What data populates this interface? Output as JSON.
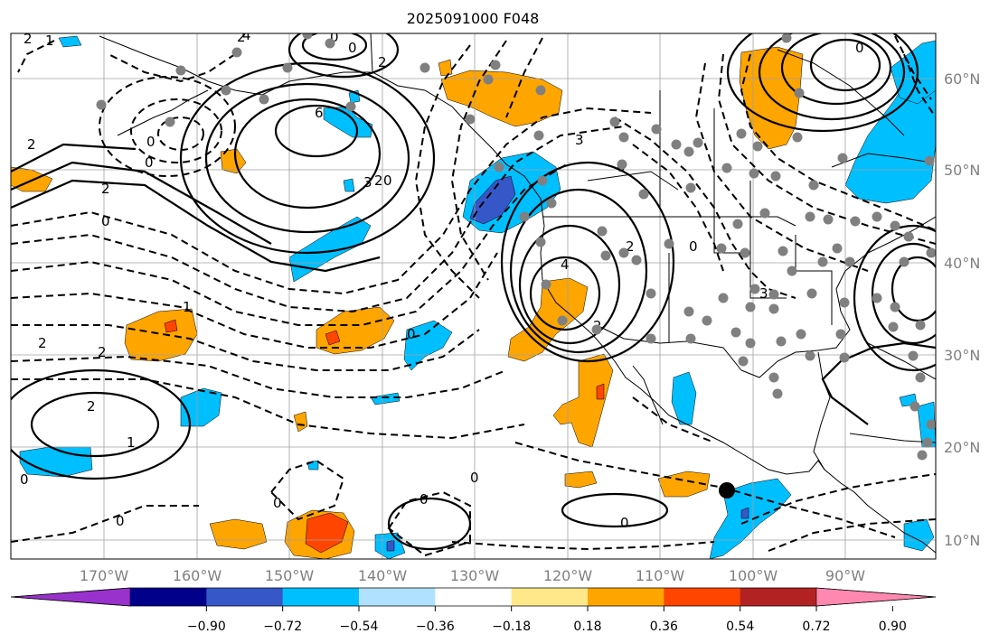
{
  "title": "2025091000 F048",
  "lon_labels": [
    "170°W",
    "160°W",
    "150°W",
    "140°W",
    "130°W",
    "120°W",
    "110°W",
    "100°W",
    "90°W"
  ],
  "lat_labels": [
    "60°N",
    "50°N",
    "40°N",
    "30°N",
    "20°N",
    "10°N"
  ],
  "colorbar": {
    "colors": [
      "#9932cc",
      "#00008b",
      "#3657c8",
      "#00bfff",
      "#b0e2ff",
      "#ffffff",
      "#ffe88a",
      "#ffa500",
      "#ff4500",
      "#b22222",
      "#ff88b0"
    ],
    "tick_labels": [
      "−0.90",
      "−0.72",
      "−0.54",
      "−0.36",
      "−0.18",
      "0.18",
      "0.36",
      "0.54",
      "0.72",
      "0.90"
    ]
  },
  "contour_labels": [
    "2",
    "4",
    "0",
    "0",
    "2",
    "1",
    "2",
    "2",
    "0",
    "0",
    "6",
    "3",
    "2",
    "0",
    "2",
    "1",
    "2",
    "2",
    "0",
    "0",
    "0",
    "3",
    "0",
    "2",
    "4",
    "2",
    "0",
    "2",
    "1",
    "0",
    "0",
    "0",
    "0",
    "0",
    "0",
    "3"
  ],
  "shading_colors": {
    "blue": "#00bfff",
    "dark_blue": "#3657c8",
    "orange": "#ffa500",
    "red": "#ff4500"
  },
  "gray_dot_color": "#808080",
  "black_marker": {
    "description_lat": "15°N",
    "description_lon": "103°W"
  }
}
